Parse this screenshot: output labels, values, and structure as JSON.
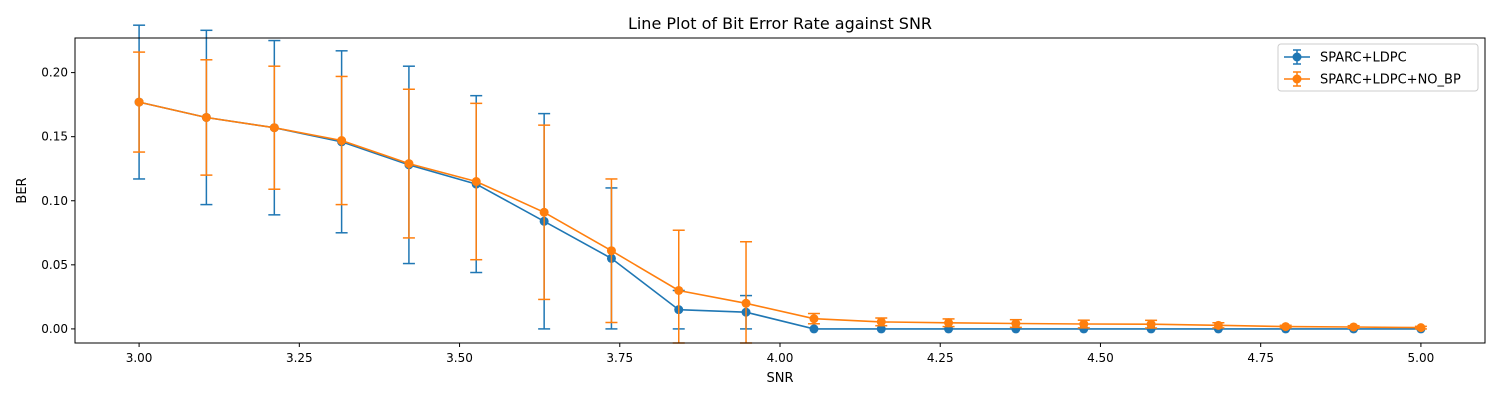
{
  "chart_data": {
    "type": "line",
    "title": "Line Plot of Bit Error Rate against SNR",
    "xlabel": "SNR",
    "ylabel": "BER",
    "xlim": [
      2.9,
      5.1
    ],
    "ylim": [
      -0.011,
      0.227
    ],
    "xticks": [
      3.0,
      3.25,
      3.5,
      3.75,
      4.0,
      4.25,
      4.5,
      4.75,
      5.0
    ],
    "xtick_labels": [
      "3.00",
      "3.25",
      "3.50",
      "3.75",
      "4.00",
      "4.25",
      "4.50",
      "4.75",
      "5.00"
    ],
    "yticks": [
      0.0,
      0.05,
      0.1,
      0.15,
      0.2
    ],
    "ytick_labels": [
      "0.00",
      "0.05",
      "0.10",
      "0.15",
      "0.20"
    ],
    "grid": false,
    "legend_position": "top-right",
    "x": [
      3.0,
      3.105,
      3.211,
      3.316,
      3.421,
      3.526,
      3.632,
      3.737,
      3.842,
      3.947,
      4.053,
      4.158,
      4.263,
      4.368,
      4.474,
      4.579,
      4.684,
      4.789,
      4.895,
      5.0
    ],
    "series": [
      {
        "name": "SPARC+LDPC",
        "color": "#1f77b4",
        "values": [
          0.177,
          0.165,
          0.157,
          0.146,
          0.128,
          0.113,
          0.084,
          0.055,
          0.015,
          0.013,
          0.0,
          0.0,
          0.0,
          0.0,
          0.0,
          0.0,
          0.0,
          0.0,
          0.0,
          0.0
        ],
        "error": [
          0.06,
          0.068,
          0.068,
          0.071,
          0.077,
          0.069,
          0.084,
          0.055,
          0.015,
          0.013,
          0.0,
          0.0,
          0.0,
          0.0,
          0.0,
          0.0,
          0.0,
          0.0,
          0.0,
          0.0
        ]
      },
      {
        "name": "SPARC+LDPC+NO_BP",
        "color": "#ff7f0e",
        "values": [
          0.177,
          0.165,
          0.157,
          0.147,
          0.129,
          0.115,
          0.091,
          0.061,
          0.03,
          0.02,
          0.008,
          0.0055,
          0.0048,
          0.0042,
          0.0038,
          0.0037,
          0.0028,
          0.0018,
          0.0015,
          0.001
        ],
        "error": [
          0.039,
          0.045,
          0.048,
          0.05,
          0.058,
          0.061,
          0.068,
          0.056,
          0.047,
          0.048,
          0.004,
          0.003,
          0.003,
          0.003,
          0.003,
          0.003,
          0.002,
          0.001,
          0.001,
          0.001
        ]
      }
    ]
  }
}
